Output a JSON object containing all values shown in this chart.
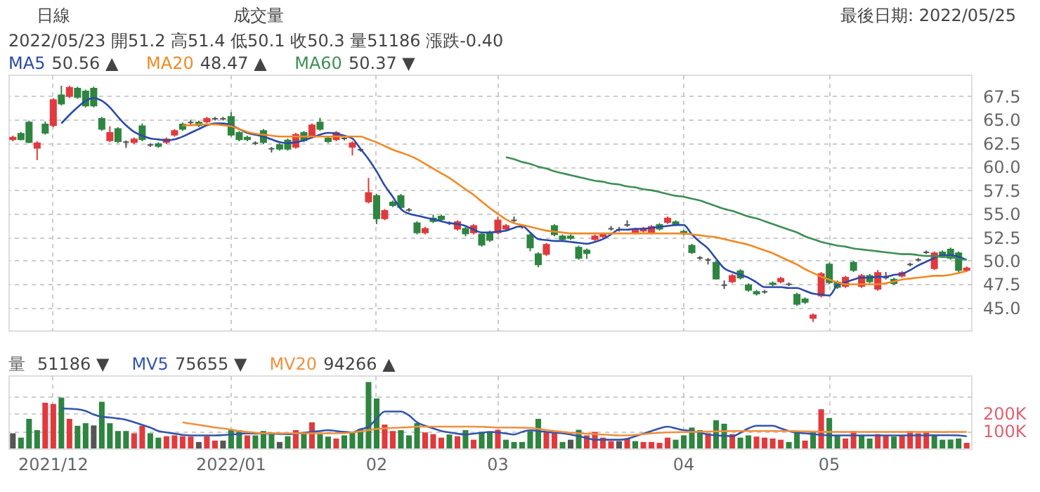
{
  "chart_data": [
    {
      "type": "candlestick",
      "legend": "top left",
      "grid": true,
      "tick_labels": "y",
      "annotations": [
        "日線",
        "成交量",
        "最後日期: 2022/05/25",
        "2022/05/23 開51.2 高51.4 低50.1 收50.3 量51186 漲跌-0.40",
        "50.56 ▲",
        "48.47 ▲",
        "50.37 ▼"
      ],
      "categories": [
        null,
        null,
        null,
        null,
        null,
        "2021/12",
        null,
        null,
        null,
        null,
        null,
        null,
        null,
        null,
        null,
        null,
        null,
        null,
        null,
        null,
        null,
        null,
        null,
        null,
        null,
        null,
        null,
        "2022/01",
        null,
        null,
        null,
        null,
        null,
        null,
        null,
        null,
        null,
        null,
        null,
        null,
        null,
        null,
        null,
        null,
        null,
        "02",
        null,
        null,
        null,
        null,
        null,
        null,
        null,
        null,
        null,
        null,
        null,
        null,
        null,
        null,
        "03",
        null,
        null,
        null,
        null,
        null,
        null,
        null,
        null,
        null,
        null,
        null,
        null,
        null,
        null,
        null,
        null,
        null,
        null,
        null,
        null,
        null,
        null,
        "04",
        null,
        null,
        null,
        null,
        null,
        null,
        null,
        null,
        null,
        null,
        null,
        null,
        null,
        null,
        null,
        null,
        null,
        "05",
        null,
        null,
        null,
        null,
        null,
        null,
        null,
        null,
        null,
        null,
        null,
        null,
        null,
        null,
        null,
        null,
        null
      ],
      "ylim": [
        42.6,
        69.8
      ],
      "yticks": [
        {
          "value": 45,
          "label": "45.0"
        },
        47.5,
        {
          "value": 50,
          "label": "50.0"
        },
        52.5,
        {
          "value": 55,
          "label": "55.0"
        },
        57.5,
        {
          "value": 60,
          "label": "60.0"
        },
        62.5,
        {
          "value": 65,
          "label": "65.0"
        },
        67.5
      ],
      "ohlc": [
        [
          62.9,
          63.3,
          62.7,
          63.1
        ],
        [
          63.5,
          63.7,
          62.8,
          62.9
        ],
        [
          64.7,
          64.9,
          62.5,
          62.6
        ],
        [
          62.0,
          62.7,
          60.7,
          62.5
        ],
        [
          64.5,
          64.8,
          63.4,
          63.6
        ],
        [
          64.4,
          67.3,
          64.2,
          67.1
        ],
        [
          67.6,
          68.6,
          66.5,
          66.7
        ],
        [
          67.5,
          68.6,
          67.3,
          68.4
        ],
        [
          68.3,
          68.5,
          67.2,
          67.4
        ],
        [
          68.0,
          68.2,
          66.3,
          66.5
        ],
        [
          68.3,
          68.5,
          66.3,
          66.5
        ],
        [
          65.1,
          65.3,
          63.8,
          64.0
        ],
        [
          62.8,
          64.3,
          62.6,
          63.6
        ],
        [
          64.0,
          64.2,
          62.5,
          62.7
        ],
        [
          62.6,
          62.8,
          62.0,
          62.6
        ],
        [
          62.6,
          63.1,
          62.4,
          62.9
        ],
        [
          64.3,
          64.6,
          62.7,
          62.9
        ],
        [
          62.3,
          62.5,
          62.1,
          62.3
        ],
        [
          62.4,
          62.6,
          62.0,
          62.2
        ],
        [
          62.6,
          63.1,
          62.4,
          62.9
        ],
        [
          63.4,
          64.0,
          63.2,
          63.8
        ],
        [
          64.5,
          64.7,
          63.8,
          64.0
        ],
        [
          64.7,
          65.0,
          64.5,
          64.7
        ],
        [
          64.7,
          64.9,
          64.2,
          64.4
        ],
        [
          64.8,
          65.3,
          64.6,
          65.1
        ],
        [
          65.1,
          65.3,
          64.9,
          65.1
        ],
        [
          65.1,
          65.3,
          64.9,
          65.1
        ],
        [
          65.3,
          65.8,
          63.2,
          63.4
        ],
        [
          63.6,
          63.8,
          62.7,
          62.9
        ],
        [
          63.1,
          63.3,
          62.7,
          62.9
        ],
        [
          62.5,
          62.7,
          62.3,
          62.5
        ],
        [
          63.8,
          64.0,
          62.4,
          62.6
        ],
        [
          61.9,
          62.1,
          61.5,
          61.9
        ],
        [
          62.3,
          62.5,
          61.7,
          61.9
        ],
        [
          62.8,
          63.0,
          61.7,
          61.9
        ],
        [
          62.1,
          63.6,
          61.9,
          63.4
        ],
        [
          63.6,
          63.8,
          62.6,
          62.8
        ],
        [
          63.2,
          64.6,
          63.0,
          64.4
        ],
        [
          64.7,
          65.2,
          63.8,
          64.0
        ],
        [
          63.0,
          63.2,
          62.5,
          62.7
        ],
        [
          62.9,
          63.8,
          62.7,
          63.6
        ],
        [
          63.0,
          63.2,
          62.8,
          63.0
        ],
        [
          62.1,
          62.7,
          61.2,
          62.5
        ],
        [
          61.8,
          62.0,
          61.6,
          61.8
        ],
        [
          56.3,
          58.8,
          56.1,
          57.2
        ],
        [
          56.9,
          57.1,
          53.9,
          54.5
        ],
        [
          54.5,
          55.5,
          54.3,
          55.3
        ],
        [
          56.2,
          56.4,
          55.7,
          55.9
        ],
        [
          56.9,
          57.1,
          55.5,
          55.7
        ],
        [
          55.4,
          55.6,
          55.2,
          55.4
        ],
        [
          54.0,
          54.2,
          52.8,
          53.0
        ],
        [
          53.0,
          53.6,
          52.8,
          53.4
        ],
        [
          54.5,
          54.9,
          54.0,
          54.2
        ],
        [
          54.7,
          54.9,
          54.2,
          54.4
        ],
        [
          54.0,
          54.2,
          53.8,
          54.0
        ],
        [
          53.4,
          54.3,
          53.2,
          54.1
        ],
        [
          53.4,
          53.6,
          52.6,
          52.9
        ],
        [
          53.0,
          53.9,
          52.8,
          53.7
        ],
        [
          52.8,
          53.0,
          51.5,
          51.7
        ],
        [
          53.0,
          53.2,
          52.0,
          52.2
        ],
        [
          53.0,
          54.7,
          52.8,
          54.3
        ],
        [
          53.4,
          53.9,
          53.2,
          53.7
        ],
        [
          54.3,
          54.7,
          54.1,
          54.3
        ],
        [
          53.6,
          53.8,
          53.4,
          53.6
        ],
        [
          52.7,
          52.9,
          51.0,
          51.4
        ],
        [
          50.7,
          50.9,
          49.3,
          49.6
        ],
        [
          50.7,
          51.9,
          50.5,
          51.7
        ],
        [
          53.7,
          53.9,
          52.6,
          52.8
        ],
        [
          52.6,
          52.8,
          52.1,
          52.3
        ],
        [
          52.6,
          52.8,
          52.2,
          52.4
        ],
        [
          51.4,
          51.6,
          50.1,
          50.3
        ],
        [
          51.1,
          51.3,
          50.2,
          50.8
        ],
        [
          52.3,
          52.8,
          52.1,
          52.6
        ],
        [
          52.6,
          53.0,
          52.4,
          52.8
        ],
        [
          53.4,
          53.7,
          53.2,
          53.4
        ],
        [
          53.3,
          53.6,
          53.1,
          53.3
        ],
        [
          53.8,
          54.3,
          53.6,
          53.8
        ],
        [
          53.0,
          53.5,
          52.8,
          53.3
        ],
        [
          53.2,
          53.6,
          53.0,
          53.4
        ],
        [
          53.0,
          53.8,
          52.8,
          53.6
        ],
        [
          53.8,
          54.0,
          53.2,
          53.4
        ],
        [
          54.1,
          54.7,
          53.9,
          54.5
        ],
        [
          54.1,
          54.3,
          53.7,
          53.9
        ],
        [
          53.1,
          53.3,
          52.7,
          52.9
        ],
        [
          51.6,
          51.8,
          50.7,
          50.9
        ],
        [
          50.3,
          50.5,
          50.1,
          50.3
        ],
        [
          50.1,
          50.3,
          49.6,
          50.1
        ],
        [
          49.8,
          50.0,
          48.0,
          48.1
        ],
        [
          47.4,
          47.9,
          47.0,
          47.4
        ],
        [
          47.8,
          48.6,
          47.6,
          48.4
        ],
        [
          48.9,
          49.1,
          48.0,
          48.2
        ],
        [
          47.4,
          47.6,
          46.7,
          46.9
        ],
        [
          46.7,
          46.9,
          46.3,
          46.5
        ],
        [
          46.7,
          46.9,
          46.5,
          46.7
        ],
        [
          47.6,
          47.8,
          47.3,
          47.5
        ],
        [
          47.8,
          48.3,
          47.6,
          48.1
        ],
        [
          47.5,
          47.7,
          47.3,
          47.5
        ],
        [
          46.4,
          46.6,
          45.2,
          45.4
        ],
        [
          45.9,
          46.1,
          45.4,
          45.6
        ],
        [
          43.9,
          44.4,
          43.5,
          44.2
        ],
        [
          46.3,
          48.8,
          46.1,
          48.6
        ],
        [
          49.6,
          49.8,
          47.5,
          47.7
        ],
        [
          47.7,
          47.9,
          47.0,
          47.2
        ],
        [
          47.3,
          48.4,
          47.1,
          48.2
        ],
        [
          49.8,
          50.0,
          48.8,
          49.0
        ],
        [
          47.3,
          48.6,
          47.1,
          48.4
        ],
        [
          48.4,
          48.6,
          47.6,
          47.8
        ],
        [
          47.0,
          49.0,
          46.8,
          48.7
        ],
        [
          48.2,
          48.8,
          48.0,
          48.2
        ],
        [
          48.0,
          48.2,
          47.4,
          47.6
        ],
        [
          48.4,
          48.9,
          48.2,
          48.7
        ],
        [
          49.6,
          49.8,
          49.4,
          49.6
        ],
        [
          50.1,
          50.3,
          49.9,
          50.1
        ],
        [
          50.9,
          51.1,
          50.7,
          50.9
        ],
        [
          49.2,
          51.0,
          49.0,
          50.8
        ],
        [
          50.9,
          51.1,
          50.4,
          50.6
        ],
        [
          51.2,
          51.4,
          50.1,
          50.3
        ],
        [
          50.8,
          51.0,
          48.8,
          49.0
        ],
        [
          49.0,
          49.4,
          48.8,
          49.2
        ]
      ],
      "colors": [
        "#e03a3e",
        "#2e8540",
        "#2e8540",
        "#e03a3e",
        "#2e8540",
        "#e03a3e",
        "#2e8540",
        "#e03a3e",
        "#2e8540",
        "#2e8540",
        "#2e8540",
        "#2e8540",
        "#e03a3e",
        "#2e8540",
        "#555555",
        "#e03a3e",
        "#2e8540",
        "#555555",
        "#2e8540",
        "#e03a3e",
        "#e03a3e",
        "#2e8540",
        "#555555",
        "#2e8540",
        "#e03a3e",
        "#555555",
        "#555555",
        "#2e8540",
        "#2e8540",
        "#2e8540",
        "#555555",
        "#2e8540",
        "#555555",
        "#2e8540",
        "#2e8540",
        "#e03a3e",
        "#2e8540",
        "#e03a3e",
        "#2e8540",
        "#2e8540",
        "#e03a3e",
        "#555555",
        "#e03a3e",
        "#555555",
        "#e03a3e",
        "#2e8540",
        "#e03a3e",
        "#2e8540",
        "#2e8540",
        "#555555",
        "#2e8540",
        "#e03a3e",
        "#2e8540",
        "#2e8540",
        "#555555",
        "#e03a3e",
        "#2e8540",
        "#e03a3e",
        "#2e8540",
        "#2e8540",
        "#e03a3e",
        "#e03a3e",
        "#555555",
        "#555555",
        "#2e8540",
        "#2e8540",
        "#e03a3e",
        "#2e8540",
        "#2e8540",
        "#2e8540",
        "#2e8540",
        "#2e8540",
        "#e03a3e",
        "#e03a3e",
        "#555555",
        "#555555",
        "#555555",
        "#e03a3e",
        "#e03a3e",
        "#e03a3e",
        "#2e8540",
        "#e03a3e",
        "#2e8540",
        "#2e8540",
        "#2e8540",
        "#555555",
        "#555555",
        "#2e8540",
        "#555555",
        "#e03a3e",
        "#2e8540",
        "#2e8540",
        "#2e8540",
        "#555555",
        "#2e8540",
        "#e03a3e",
        "#555555",
        "#2e8540",
        "#2e8540",
        "#e03a3e",
        "#e03a3e",
        "#2e8540",
        "#2e8540",
        "#e03a3e",
        "#2e8540",
        "#e03a3e",
        "#2e8540",
        "#e03a3e",
        "#555555",
        "#2e8540",
        "#e03a3e",
        "#555555",
        "#555555",
        "#555555",
        "#e03a3e",
        "#2e8540",
        "#2e8540",
        "#2e8540",
        "#e03a3e"
      ],
      "series": [
        {
          "name": "MA5",
          "type": "line",
          "color": "#2b4aa8",
          "values": [
            null,
            null,
            null,
            null,
            null,
            null,
            64.6,
            65.5,
            66.3,
            67.0,
            67.3,
            67.0,
            66.3,
            65.3,
            64.4,
            63.7,
            63.3,
            63.0,
            62.9,
            62.8,
            62.9,
            63.2,
            63.6,
            64.0,
            64.4,
            64.6,
            64.6,
            64.4,
            64.0,
            63.6,
            63.4,
            63.2,
            62.9,
            62.6,
            62.5,
            62.6,
            62.8,
            63.1,
            63.4,
            63.6,
            63.5,
            63.3,
            63.0,
            61.9,
            60.8,
            59.5,
            58.0,
            56.8,
            55.5,
            55.0,
            54.8,
            54.6,
            54.4,
            54.2,
            54.0,
            53.9,
            53.7,
            53.3,
            53.0,
            53.0,
            53.1,
            53.2,
            53.5,
            53.7,
            53.0,
            52.3,
            52.2,
            52.1,
            52.1,
            52.0,
            51.9,
            51.8,
            52.0,
            52.3,
            52.8,
            53.3,
            53.3,
            53.4,
            53.4,
            53.5,
            53.6,
            53.7,
            53.8,
            53.8,
            52.8,
            52.0,
            51.3,
            50.2,
            49.2,
            48.8,
            48.5,
            48.2,
            47.7,
            47.2,
            47.2,
            47.2,
            47.1,
            47.1,
            46.8,
            46.5,
            46.4,
            46.3,
            47.4,
            47.7,
            48.0,
            48.2,
            48.2,
            48.3,
            48.3,
            48.5,
            48.6,
            49.0,
            49.5,
            49.9,
            50.3,
            50.6,
            50.6,
            50.4,
            50.1
          ]
        },
        {
          "name": "MA20",
          "type": "line",
          "color": "#f08a24",
          "values": [
            null,
            null,
            null,
            null,
            null,
            null,
            null,
            null,
            null,
            null,
            null,
            null,
            null,
            null,
            null,
            null,
            null,
            null,
            null,
            null,
            null,
            64.4,
            64.4,
            64.5,
            64.5,
            64.5,
            64.4,
            64.3,
            64.0,
            63.7,
            63.5,
            63.4,
            63.3,
            63.2,
            63.2,
            63.2,
            63.2,
            63.2,
            63.2,
            63.2,
            63.2,
            63.2,
            63.2,
            63.2,
            62.9,
            62.6,
            62.2,
            61.8,
            61.5,
            61.2,
            60.8,
            60.3,
            59.8,
            59.3,
            58.8,
            58.2,
            57.6,
            57.0,
            56.3,
            55.6,
            55.0,
            54.4,
            54.0,
            53.8,
            53.6,
            53.4,
            53.2,
            53.1,
            53.0,
            52.9,
            52.9,
            52.9,
            52.9,
            52.9,
            52.9,
            52.9,
            52.9,
            52.9,
            52.9,
            52.9,
            52.9,
            52.9,
            52.9,
            52.9,
            52.8,
            52.7,
            52.6,
            52.5,
            52.3,
            52.1,
            51.9,
            51.7,
            51.4,
            51.1,
            50.8,
            50.4,
            50.0,
            49.6,
            49.1,
            48.7,
            48.3,
            48.0,
            47.7,
            47.5,
            47.5,
            47.5,
            47.5,
            47.5,
            47.6,
            47.8,
            48.0,
            48.1,
            48.2,
            48.3,
            48.4,
            48.4,
            48.5,
            48.7,
            48.9
          ]
        },
        {
          "name": "MA60",
          "type": "line",
          "color": "#3d8f55",
          "values": [
            null,
            null,
            null,
            null,
            null,
            null,
            null,
            null,
            null,
            null,
            null,
            null,
            null,
            null,
            null,
            null,
            null,
            null,
            null,
            null,
            null,
            null,
            null,
            null,
            null,
            null,
            null,
            null,
            null,
            null,
            null,
            null,
            null,
            null,
            null,
            null,
            null,
            null,
            null,
            null,
            null,
            null,
            null,
            null,
            null,
            null,
            null,
            null,
            null,
            null,
            null,
            null,
            null,
            null,
            null,
            null,
            null,
            null,
            null,
            null,
            null,
            61.0,
            60.8,
            60.5,
            60.3,
            60.0,
            59.8,
            59.5,
            59.3,
            59.1,
            58.9,
            58.7,
            58.5,
            58.4,
            58.2,
            58.1,
            57.9,
            57.8,
            57.6,
            57.5,
            57.3,
            57.1,
            56.9,
            56.8,
            56.6,
            56.4,
            56.1,
            55.8,
            55.5,
            55.3,
            55.0,
            54.7,
            54.5,
            54.2,
            53.9,
            53.6,
            53.3,
            53.0,
            52.6,
            52.3,
            52.0,
            51.8,
            51.6,
            51.5,
            51.3,
            51.2,
            51.1,
            51.0,
            50.9,
            50.8,
            50.7,
            50.7,
            50.6,
            50.5,
            50.5,
            50.4,
            50.4,
            50.2,
            50.1
          ]
        }
      ]
    },
    {
      "type": "bar",
      "legend": "top left",
      "grid": true,
      "annotations": [
        "51186 ▼",
        "75655 ▼",
        "94266 ▲"
      ],
      "categories": [
        null,
        null,
        null,
        null,
        null,
        "2021/12",
        null,
        null,
        null,
        null,
        null,
        null,
        null,
        null,
        null,
        null,
        null,
        null,
        null,
        null,
        null,
        null,
        null,
        null,
        null,
        null,
        null,
        "2022/01",
        null,
        null,
        null,
        null,
        null,
        null,
        null,
        null,
        null,
        null,
        null,
        null,
        null,
        null,
        null,
        null,
        null,
        "02",
        null,
        null,
        null,
        null,
        null,
        null,
        null,
        null,
        null,
        null,
        null,
        null,
        null,
        null,
        "03",
        null,
        null,
        null,
        null,
        null,
        null,
        null,
        null,
        null,
        null,
        null,
        null,
        null,
        null,
        null,
        null,
        null,
        null,
        null,
        null,
        null,
        null,
        "04",
        null,
        null,
        null,
        null,
        null,
        null,
        null,
        null,
        null,
        null,
        null,
        null,
        null,
        null,
        null,
        null,
        null,
        "05",
        null,
        null,
        null,
        null,
        null,
        null,
        null,
        null,
        null,
        null,
        null,
        null,
        null,
        null,
        null,
        null,
        null
      ],
      "ylim": [
        0,
        420000
      ],
      "yticks": [
        {
          "value": 100000,
          "label": "100K"
        },
        {
          "value": 200000,
          "label": "200K"
        },
        {
          "value": 300000,
          "label": null
        }
      ],
      "series": [
        {
          "name": "量",
          "type": "bar",
          "color": "#666666",
          "values": [
            87000,
            62000,
            170000,
            105000,
            262000,
            255000,
            292000,
            170000,
            130000,
            145000,
            132000,
            268000,
            145000,
            100000,
            100000,
            87000,
            130000,
            87000,
            62000,
            70000,
            75000,
            70000,
            68000,
            37000,
            70000,
            45000,
            45000,
            105000,
            105000,
            75000,
            75000,
            100000,
            92000,
            37000,
            70000,
            105000,
            87000,
            150000,
            82000,
            68000,
            57000,
            75000,
            95000,
            112000,
            382000,
            287000,
            137000,
            100000,
            105000,
            75000,
            145000,
            92000,
            82000,
            62000,
            80000,
            70000,
            105000,
            50000,
            95000,
            95000,
            107000,
            50000,
            37000,
            37000,
            100000,
            170000,
            92000,
            87000,
            37000,
            50000,
            107000,
            75000,
            95000,
            62000,
            42000,
            42000,
            57000,
            42000,
            37000,
            37000,
            32000,
            62000,
            50000,
            75000,
            120000,
            105000,
            87000,
            162000,
            142000,
            82000,
            62000,
            75000,
            68000,
            62000,
            57000,
            50000,
            37000,
            100000,
            45000,
            100000,
            225000,
            175000,
            75000,
            57000,
            100000,
            75000,
            57000,
            82000,
            75000,
            68000,
            75000,
            100000,
            87000,
            92000,
            80000,
            50000,
            51000,
            57000,
            32000
          ],
          "colors": [
            "#555555",
            "#2e8540",
            "#2e8540",
            "#2e8540",
            "#e03a3e",
            "#e03a3e",
            "#2e8540",
            "#e03a3e",
            "#2e8540",
            "#2e8540",
            "#555555",
            "#2e8540",
            "#2e8540",
            "#2e8540",
            "#2e8540",
            "#e03a3e",
            "#e03a3e",
            "#2e8540",
            "#2e8540",
            "#e03a3e",
            "#e03a3e",
            "#e03a3e",
            "#e03a3e",
            "#555555",
            "#e03a3e",
            "#e03a3e",
            "#555555",
            "#2e8540",
            "#2e8540",
            "#e03a3e",
            "#2e8540",
            "#2e8540",
            "#2e8540",
            "#555555",
            "#2e8540",
            "#e03a3e",
            "#2e8540",
            "#e03a3e",
            "#2e8540",
            "#2e8540",
            "#e03a3e",
            "#2e8540",
            "#2e8540",
            "#2e8540",
            "#2e8540",
            "#2e8540",
            "#e03a3e",
            "#e03a3e",
            "#2e8540",
            "#2e8540",
            "#2e8540",
            "#e03a3e",
            "#e03a3e",
            "#e03a3e",
            "#2e8540",
            "#e03a3e",
            "#2e8540",
            "#e03a3e",
            "#2e8540",
            "#2e8540",
            "#e03a3e",
            "#2e8540",
            "#2e8540",
            "#2e8540",
            "#2e8540",
            "#2e8540",
            "#e03a3e",
            "#e03a3e",
            "#2e8540",
            "#555555",
            "#2e8540",
            "#e03a3e",
            "#e03a3e",
            "#e03a3e",
            "#e03a3e",
            "#555555",
            "#e03a3e",
            "#2e8540",
            "#e03a3e",
            "#e03a3e",
            "#e03a3e",
            "#e03a3e",
            "#2e8540",
            "#2e8540",
            "#2e8540",
            "#2e8540",
            "#e03a3e",
            "#2e8540",
            "#2e8540",
            "#e03a3e",
            "#2e8540",
            "#2e8540",
            "#e03a3e",
            "#e03a3e",
            "#e03a3e",
            "#e03a3e",
            "#2e8540",
            "#2e8540",
            "#e03a3e",
            "#2e8540",
            "#e03a3e",
            "#2e8540",
            "#2e8540",
            "#e03a3e",
            "#e03a3e",
            "#2e8540",
            "#2e8540",
            "#e03a3e",
            "#e03a3e",
            "#2e8540",
            "#e03a3e",
            "#e03a3e",
            "#e03a3e",
            "#e03a3e",
            "#2e8540",
            "#2e8540",
            "#2e8540",
            "#2e8540",
            "#e03a3e"
          ]
        },
        {
          "name": "MV5",
          "type": "line",
          "color": "#3355aa",
          "values": [
            null,
            null,
            null,
            null,
            null,
            null,
            230000,
            228000,
            225000,
            215000,
            195000,
            182000,
            178000,
            172000,
            165000,
            150000,
            135000,
            120000,
            100000,
            92000,
            85000,
            78000,
            75000,
            75000,
            75000,
            75000,
            77000,
            80000,
            83000,
            87000,
            86000,
            85000,
            84000,
            83000,
            82000,
            85000,
            90000,
            95000,
            100000,
            105000,
            100000,
            95000,
            92000,
            110000,
            125000,
            170000,
            212000,
            212000,
            212000,
            190000,
            150000,
            130000,
            115000,
            100000,
            92000,
            85000,
            80000,
            85000,
            90000,
            95000,
            92000,
            86000,
            80000,
            95000,
            105000,
            100000,
            95000,
            90000,
            87000,
            80000,
            70000,
            60000,
            50000,
            50000,
            50000,
            50000,
            55000,
            70000,
            85000,
            100000,
            115000,
            125000,
            115000,
            105000,
            100000,
            90000,
            80000,
            75000,
            72000,
            70000,
            90000,
            115000,
            130000,
            130000,
            130000,
            115000,
            100000,
            90000,
            87000,
            82000,
            78000,
            75000,
            75000,
            75000,
            75000,
            75000,
            75000,
            75000,
            75000,
            75000,
            75000,
            75000,
            75000,
            75000,
            76000,
            76000,
            76000,
            75000,
            70000
          ]
        },
        {
          "name": "MV20",
          "type": "line",
          "color": "#f09040",
          "values": [
            null,
            null,
            null,
            null,
            null,
            null,
            null,
            null,
            null,
            null,
            null,
            null,
            null,
            null,
            null,
            null,
            null,
            null,
            null,
            null,
            null,
            150000,
            142000,
            135000,
            128000,
            120000,
            115000,
            108000,
            100000,
            95000,
            90000,
            87000,
            87000,
            87000,
            87000,
            87000,
            87000,
            87000,
            87000,
            87000,
            87000,
            88000,
            92000,
            98000,
            105000,
            112000,
            115000,
            118000,
            120000,
            122000,
            125000,
            125000,
            125000,
            125000,
            125000,
            125000,
            125000,
            125000,
            124000,
            122000,
            120000,
            120000,
            120000,
            119000,
            118000,
            112000,
            105000,
            100000,
            95000,
            90000,
            87000,
            85000,
            82000,
            80000,
            77000,
            75000,
            75000,
            78000,
            82000,
            87000,
            90000,
            92000,
            93000,
            94000,
            95000,
            96000,
            97000,
            98000,
            99000,
            100000,
            100000,
            100000,
            100000,
            100000,
            100000,
            100000,
            100000,
            99000,
            98000,
            97000,
            96000,
            95000,
            95000,
            95000,
            95000,
            95000,
            95000,
            95000,
            95000,
            95000,
            95000,
            95000,
            95000,
            95000,
            95000,
            94000,
            95000,
            95000,
            95000
          ]
        }
      ]
    }
  ]
}
